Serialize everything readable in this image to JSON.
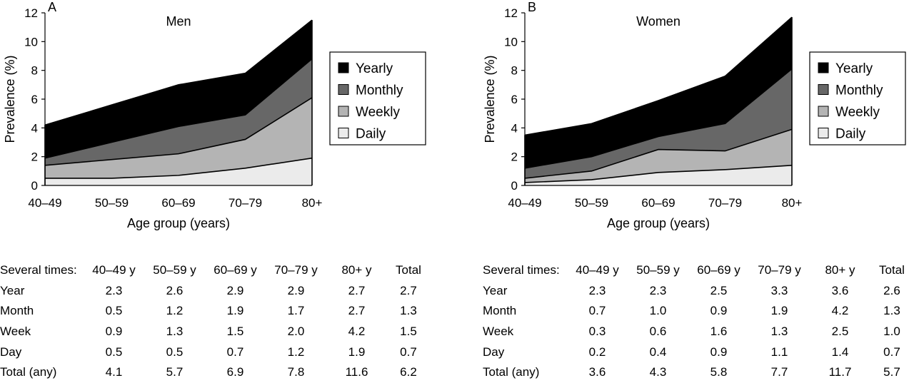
{
  "chart_data": [
    {
      "type": "area",
      "panel_label": "A",
      "title": "Men",
      "xlabel": "Age group (years)",
      "ylabel": "Prevalence (%)",
      "categories": [
        "40–49",
        "50–59",
        "60–69",
        "70–79",
        "80+"
      ],
      "ylim": [
        0,
        12
      ],
      "yticks": [
        "0",
        "2",
        "4",
        "6",
        "8",
        "10",
        "12"
      ],
      "stacked": true,
      "grid": false,
      "legend_position": "right",
      "series": [
        {
          "name": "Daily",
          "values": [
            0.5,
            0.5,
            0.7,
            1.2,
            1.9
          ],
          "color": "#ebebeb"
        },
        {
          "name": "Weekly",
          "values": [
            0.9,
            1.3,
            1.5,
            2.0,
            4.2
          ],
          "color": "#b4b4b4"
        },
        {
          "name": "Monthly",
          "values": [
            0.5,
            1.2,
            1.9,
            1.7,
            2.7
          ],
          "color": "#676767"
        },
        {
          "name": "Yearly",
          "values": [
            2.3,
            2.6,
            2.9,
            2.9,
            2.7
          ],
          "color": "#000000"
        }
      ]
    },
    {
      "type": "area",
      "panel_label": "B",
      "title": "Women",
      "xlabel": "Age group (years)",
      "ylabel": "Prevalence (%)",
      "categories": [
        "40–49",
        "50–59",
        "60–69",
        "70–79",
        "80+"
      ],
      "ylim": [
        0,
        12
      ],
      "yticks": [
        "0",
        "2",
        "4",
        "6",
        "8",
        "10",
        "12"
      ],
      "stacked": true,
      "grid": false,
      "legend_position": "right",
      "series": [
        {
          "name": "Daily",
          "values": [
            0.2,
            0.4,
            0.9,
            1.1,
            1.4
          ],
          "color": "#ebebeb"
        },
        {
          "name": "Weekly",
          "values": [
            0.3,
            0.6,
            1.6,
            1.3,
            2.5
          ],
          "color": "#b4b4b4"
        },
        {
          "name": "Monthly",
          "values": [
            0.7,
            1.0,
            0.9,
            1.9,
            4.2
          ],
          "color": "#676767"
        },
        {
          "name": "Yearly",
          "values": [
            2.3,
            2.3,
            2.5,
            3.3,
            3.6
          ],
          "color": "#000000"
        }
      ]
    }
  ],
  "legend_order": [
    "Yearly",
    "Monthly",
    "Weekly",
    "Daily"
  ],
  "tables": [
    {
      "header": [
        "Several times:",
        "40–49 y",
        "50–59 y",
        "60–69 y",
        "70–79 y",
        "80+ y",
        "Total"
      ],
      "rows": [
        [
          "Year",
          "2.3",
          "2.6",
          "2.9",
          "2.9",
          "2.7",
          "2.7"
        ],
        [
          "Month",
          "0.5",
          "1.2",
          "1.9",
          "1.7",
          "2.7",
          "1.3"
        ],
        [
          "Week",
          "0.9",
          "1.3",
          "1.5",
          "2.0",
          "4.2",
          "1.5"
        ],
        [
          "Day",
          "0.5",
          "0.5",
          "0.7",
          "1.2",
          "1.9",
          "0.7"
        ],
        [
          "Total (any)",
          "4.1",
          "5.7",
          "6.9",
          "7.8",
          "11.6",
          "6.2"
        ]
      ]
    },
    {
      "header": [
        "Several times:",
        "40–49 y",
        "50–59 y",
        "60–69 y",
        "70–79 y",
        "80+ y",
        "Total"
      ],
      "rows": [
        [
          "Year",
          "2.3",
          "2.3",
          "2.5",
          "3.3",
          "3.6",
          "2.6"
        ],
        [
          "Month",
          "0.7",
          "1.0",
          "0.9",
          "1.9",
          "4.2",
          "1.3"
        ],
        [
          "Week",
          "0.3",
          "0.6",
          "1.6",
          "1.3",
          "2.5",
          "1.0"
        ],
        [
          "Day",
          "0.2",
          "0.4",
          "0.9",
          "1.1",
          "1.4",
          "0.7"
        ],
        [
          "Total (any)",
          "3.6",
          "4.3",
          "5.8",
          "7.7",
          "11.7",
          "5.7"
        ]
      ]
    }
  ]
}
